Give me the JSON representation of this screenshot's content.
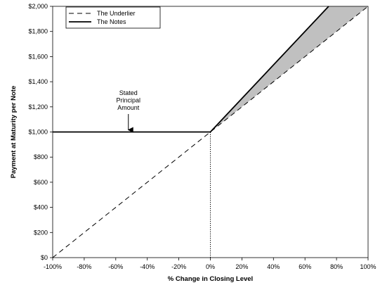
{
  "chart_data": {
    "type": "line",
    "title": "",
    "xlabel": "% Change in Closing Level",
    "ylabel": "Payment at Maturity per Note",
    "xlim": [
      -100,
      100
    ],
    "ylim": [
      0,
      2000
    ],
    "x_ticks": [
      -100,
      -80,
      -60,
      -40,
      -20,
      0,
      20,
      40,
      60,
      80,
      100
    ],
    "x_tick_labels": [
      "-100%",
      "-80%",
      "-60%",
      "-40%",
      "-20%",
      "0%",
      "20%",
      "40%",
      "60%",
      "80%",
      "100%"
    ],
    "y_ticks": [
      0,
      200,
      400,
      600,
      800,
      1000,
      1200,
      1400,
      1600,
      1800,
      2000
    ],
    "y_tick_labels": [
      "$0",
      "$200",
      "$400",
      "$600",
      "$800",
      "$1,000",
      "$1,200",
      "$1,400",
      "$1,600",
      "$1,800",
      "$2,000"
    ],
    "grid": false,
    "legend_position": "top-left",
    "series": [
      {
        "name": "The Underlier",
        "style": "dashed",
        "color": "#000000",
        "points": [
          [
            -100,
            0
          ],
          [
            100,
            2000
          ]
        ]
      },
      {
        "name": "The Notes",
        "style": "solid",
        "color": "#000000",
        "points": [
          [
            -100,
            1000
          ],
          [
            0,
            1000
          ],
          [
            75,
            2000
          ]
        ]
      }
    ],
    "shaded_region": {
      "description_color": "#c0c0c0",
      "points": [
        [
          0,
          1000
        ],
        [
          75,
          2000
        ],
        [
          100,
          2000
        ]
      ]
    },
    "reference_line": {
      "style": "dotted",
      "x": 0,
      "from_y": 0,
      "to_y": 1000
    },
    "annotation": {
      "lines": [
        "Stated",
        "Principal",
        "Amount"
      ],
      "arrow_target": [
        -52,
        1000
      ]
    }
  }
}
